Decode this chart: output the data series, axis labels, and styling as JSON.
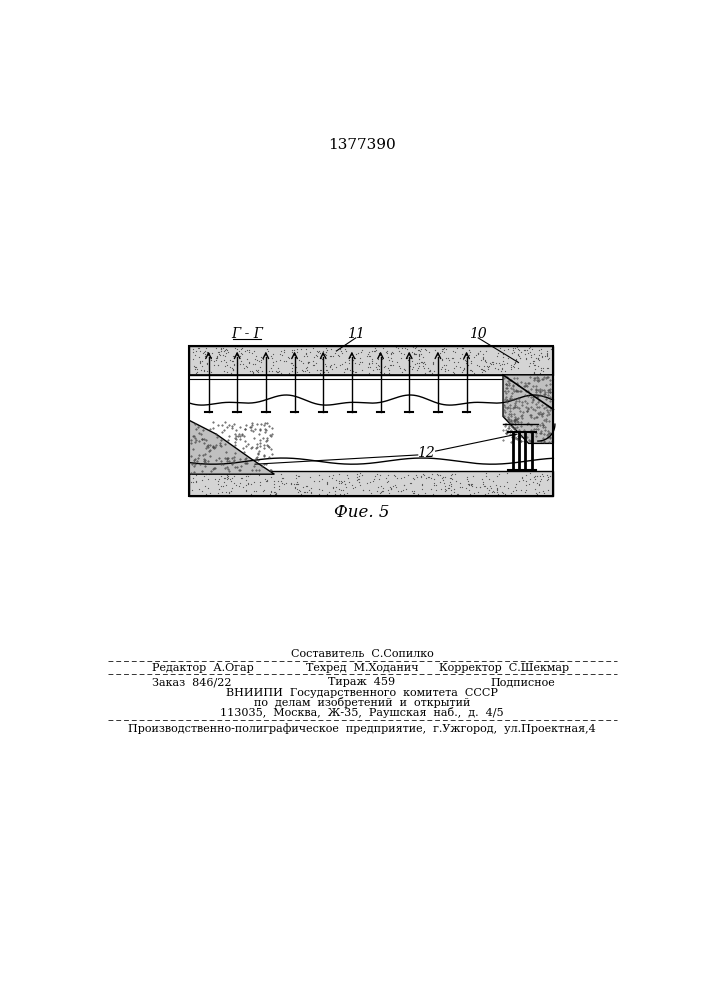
{
  "title": "1377390",
  "fig_label": "Фие. 5",
  "label_G": "Г - Г",
  "label_11": "11",
  "label_10": "10",
  "label_12": "12",
  "paper_color": "#ffffff",
  "line_color": "#000000",
  "rock_color": "#c8c8c8",
  "footer_line1": "Составитель  С.Сопилко",
  "footer_line2_left": "Редактор  А.Огар",
  "footer_line2_center": "Техред  М.Ходанич",
  "footer_line2_right": "Корректор  С.Шекмар",
  "footer_line3_left": "Заказ  846/22",
  "footer_line3_center": "Тираж  459",
  "footer_line3_right": "Подписное",
  "footer_line4": "ВНИИПИ  Государственного  комитета  СССР",
  "footer_line5": "по  делам  изобретений  и  открытий",
  "footer_line6": "113035,  Москва,  Ж-35,  Раушская  наб.,  д.  4/5",
  "footer_line7": "Производственно-полиграфическое  предприятие,  г.Ужгород,  ул.Проектная,4"
}
